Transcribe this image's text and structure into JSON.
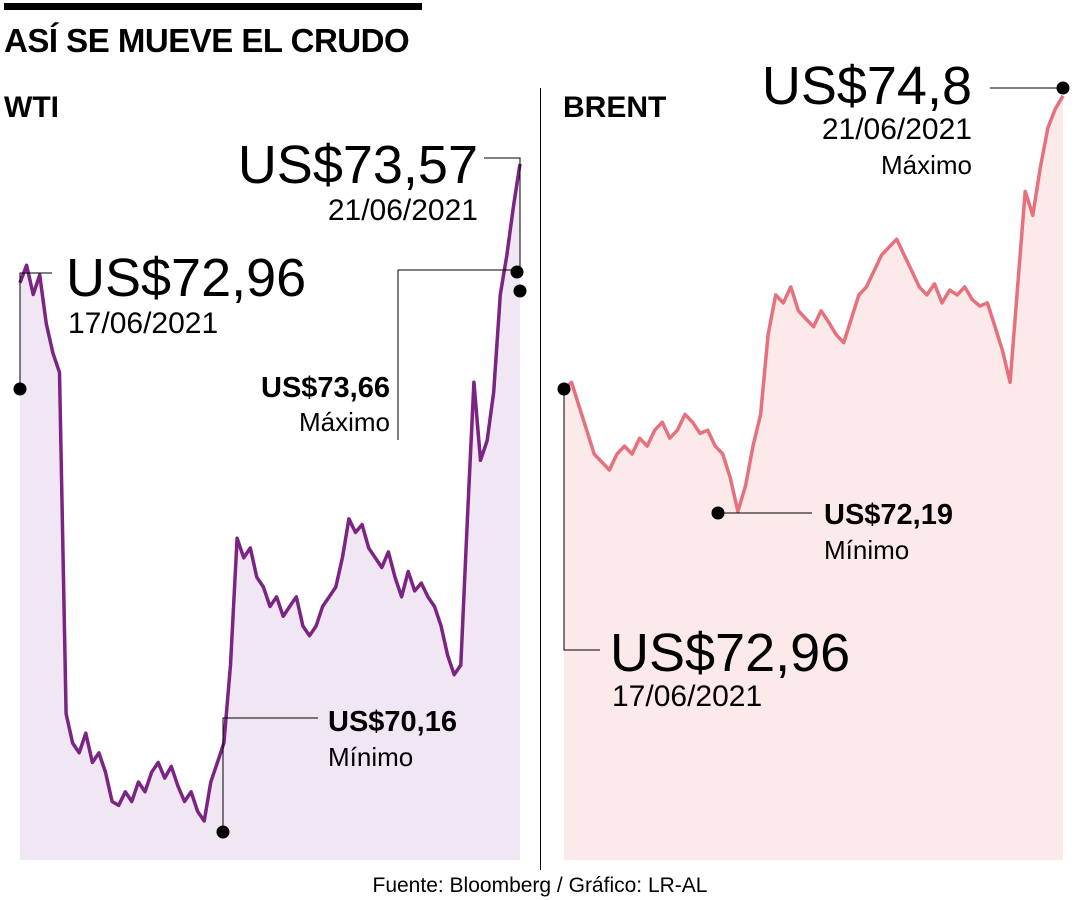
{
  "title": "ASÍ SE MUEVE EL CRUDO",
  "source": "Fuente: Bloomberg / Gráfico: LR-AL",
  "colors": {
    "wti_line": "#7b2483",
    "wti_fill": "#f1e7f4",
    "brent_line": "#e7707d",
    "brent_fill": "#fce9ea"
  },
  "chart_data": [
    {
      "type": "line",
      "title": "WTI",
      "series": [
        {
          "values": [
            72.96,
            73.05,
            72.9,
            73.0,
            72.75,
            72.6,
            72.5,
            70.75,
            70.6,
            70.55,
            70.65,
            70.5,
            70.55,
            70.45,
            70.3,
            70.28,
            70.35,
            70.3,
            70.4,
            70.35,
            70.45,
            70.5,
            70.42,
            70.48,
            70.38,
            70.3,
            70.35,
            70.25,
            70.2,
            70.4,
            70.5,
            70.6,
            71.0,
            71.65,
            71.55,
            71.6,
            71.45,
            71.4,
            71.3,
            71.35,
            71.25,
            71.3,
            71.35,
            71.2,
            71.15,
            71.2,
            71.3,
            71.35,
            71.4,
            71.55,
            71.75,
            71.68,
            71.72,
            71.6,
            71.55,
            71.5,
            71.58,
            71.45,
            71.35,
            71.48,
            71.38,
            71.42,
            71.35,
            71.3,
            71.2,
            71.05,
            70.95,
            71.0,
            71.75,
            72.45,
            72.05,
            72.15,
            72.4,
            72.9,
            73.1,
            73.35,
            73.57
          ]
        }
      ],
      "ylim": [
        70.0,
        74.0
      ],
      "annotations": {
        "start": {
          "price": "US$72,96",
          "date": "17/06/2021"
        },
        "end": {
          "price": "US$73,57",
          "date": "21/06/2021"
        },
        "max": {
          "price": "US$73,66",
          "label": "Máximo"
        },
        "min": {
          "price": "US$70,16",
          "label": "Mínimo"
        }
      }
    },
    {
      "type": "line",
      "title": "BRENT",
      "series": [
        {
          "values": [
            72.96,
            73.0,
            72.85,
            72.7,
            72.55,
            72.5,
            72.45,
            72.55,
            72.6,
            72.55,
            72.65,
            72.6,
            72.7,
            72.75,
            72.65,
            72.7,
            72.8,
            72.75,
            72.68,
            72.7,
            72.6,
            72.55,
            72.4,
            72.19,
            72.35,
            72.6,
            72.8,
            73.3,
            73.55,
            73.5,
            73.6,
            73.45,
            73.4,
            73.35,
            73.45,
            73.38,
            73.3,
            73.25,
            73.4,
            73.55,
            73.6,
            73.7,
            73.8,
            73.85,
            73.9,
            73.8,
            73.7,
            73.6,
            73.55,
            73.62,
            73.5,
            73.58,
            73.55,
            73.6,
            73.52,
            73.48,
            73.5,
            73.35,
            73.2,
            73.0,
            73.6,
            74.2,
            74.05,
            74.35,
            74.6,
            74.72,
            74.8
          ]
        }
      ],
      "ylim": [
        70.0,
        74.9
      ],
      "annotations": {
        "max": {
          "price": "US$74,8",
          "date": "21/06/2021",
          "label": "Máximo"
        },
        "min": {
          "price": "US$72,19",
          "label": "Mínimo"
        },
        "start": {
          "price": "US$72,96",
          "date": "17/06/2021"
        }
      }
    }
  ]
}
